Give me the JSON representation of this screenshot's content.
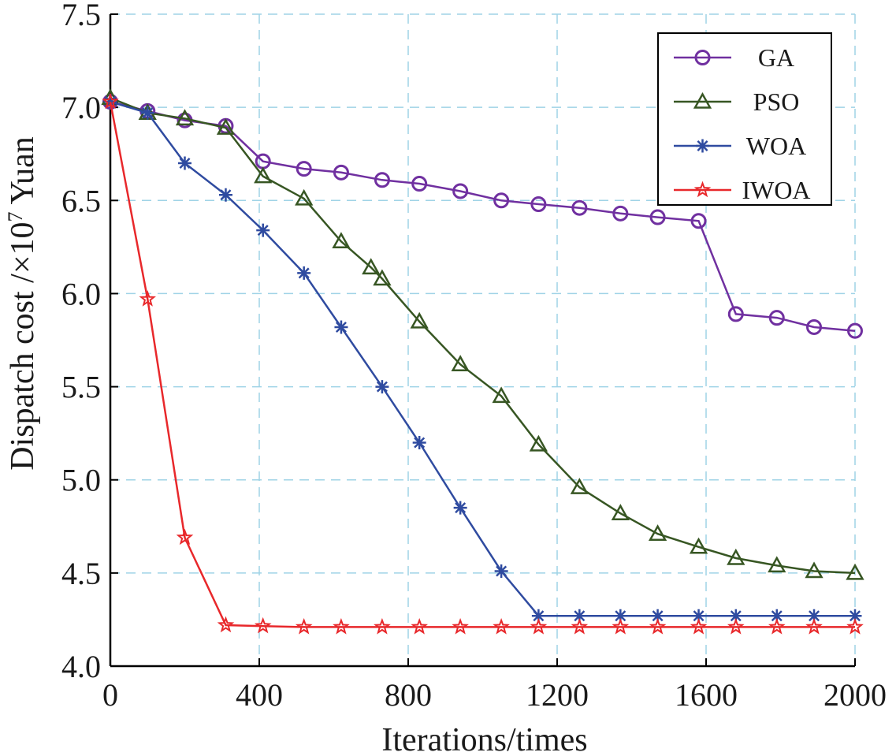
{
  "chart_data": {
    "type": "line",
    "title": "",
    "xlabel": "Iterations/times",
    "ylabel": {
      "prefix": "Dispatch cost /×10",
      "exponent": "7",
      "suffix": " Yuan"
    },
    "xlim": [
      0,
      2000
    ],
    "ylim": [
      4.0,
      7.5
    ],
    "xticks": [
      0,
      400,
      800,
      1200,
      1600,
      2000
    ],
    "yticks": [
      4.0,
      4.5,
      5.0,
      5.5,
      6.0,
      6.5,
      7.0,
      7.5
    ],
    "ytick_labels": [
      "4.0",
      "4.5",
      "5.0",
      "5.5",
      "6.0",
      "6.5",
      "7.0",
      "7.5"
    ],
    "grid": true,
    "legend_position": "top-right",
    "series": [
      {
        "name": "GA",
        "color": "#7030a0",
        "marker": "circle",
        "x": [
          0,
          100,
          200,
          310,
          410,
          520,
          620,
          730,
          830,
          940,
          1050,
          1150,
          1260,
          1370,
          1470,
          1580,
          1680,
          1790,
          1890,
          2000
        ],
        "y": [
          7.03,
          6.98,
          6.93,
          6.9,
          6.71,
          6.67,
          6.65,
          6.61,
          6.59,
          6.55,
          6.5,
          6.48,
          6.46,
          6.43,
          6.41,
          6.39,
          5.89,
          5.87,
          5.82,
          5.8
        ]
      },
      {
        "name": "PSO",
        "color": "#375623",
        "marker": "triangle",
        "x": [
          0,
          100,
          200,
          310,
          410,
          520,
          620,
          700,
          730,
          830,
          940,
          1050,
          1150,
          1260,
          1370,
          1470,
          1580,
          1680,
          1790,
          1890,
          2000
        ],
        "y": [
          7.05,
          6.97,
          6.94,
          6.89,
          6.63,
          6.51,
          6.28,
          6.14,
          6.08,
          5.85,
          5.62,
          5.45,
          5.19,
          4.96,
          4.82,
          4.71,
          4.64,
          4.58,
          4.54,
          4.51,
          4.5
        ]
      },
      {
        "name": "WOA",
        "color": "#2f4ba0",
        "marker": "asterisk",
        "x": [
          0,
          100,
          200,
          310,
          410,
          520,
          620,
          730,
          830,
          940,
          1050,
          1150,
          1260,
          1370,
          1470,
          1580,
          1680,
          1790,
          1890,
          2000
        ],
        "y": [
          7.03,
          6.97,
          6.7,
          6.53,
          6.34,
          6.11,
          5.82,
          5.5,
          5.2,
          4.85,
          4.51,
          4.27,
          4.27,
          4.27,
          4.27,
          4.27,
          4.27,
          4.27,
          4.27,
          4.27
        ]
      },
      {
        "name": "IWOA",
        "color": "#e8282b",
        "marker": "star",
        "x": [
          0,
          100,
          200,
          310,
          410,
          520,
          620,
          730,
          830,
          940,
          1050,
          1150,
          1260,
          1370,
          1470,
          1580,
          1680,
          1790,
          1890,
          2000
        ],
        "y": [
          7.03,
          5.97,
          4.69,
          4.22,
          4.215,
          4.21,
          4.21,
          4.21,
          4.21,
          4.21,
          4.21,
          4.21,
          4.21,
          4.21,
          4.21,
          4.21,
          4.21,
          4.21,
          4.21,
          4.21
        ]
      }
    ]
  }
}
